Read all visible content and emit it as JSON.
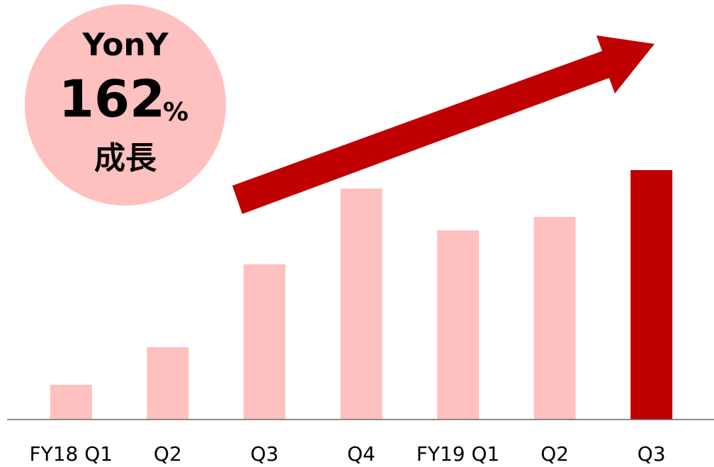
{
  "chart_data": {
    "type": "bar",
    "categories": [
      "FY18 Q1",
      "Q2",
      "Q3",
      "Q4",
      "FY19 Q1",
      "Q2",
      "Q3"
    ],
    "values": [
      49,
      102,
      219,
      326,
      267,
      286,
      352
    ],
    "colors": [
      "#ffc0c0",
      "#ffc0c0",
      "#ffc0c0",
      "#ffc0c0",
      "#ffc0c0",
      "#ffc0c0",
      "#c00000"
    ],
    "ylim": [
      0,
      400
    ],
    "badge": {
      "top": "YonY",
      "growth": 162,
      "unit": "%",
      "bottom": "成長"
    }
  }
}
